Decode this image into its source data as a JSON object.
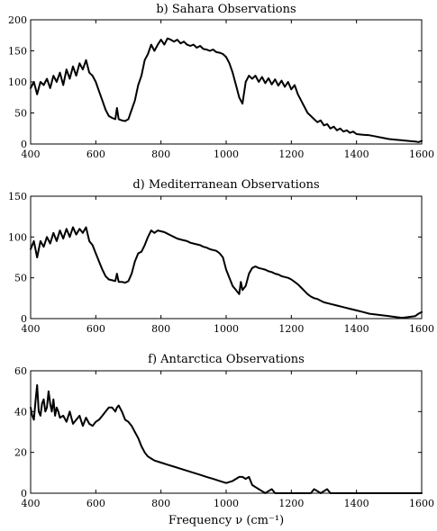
{
  "chart_data": [
    {
      "type": "line",
      "title": "b) Sahara Observations",
      "xlim": [
        400,
        1600
      ],
      "ylim": [
        0,
        200
      ],
      "xticks": [
        400,
        600,
        800,
        1000,
        1200,
        1400,
        1600
      ],
      "yticks": [
        0,
        50,
        100,
        150,
        200
      ],
      "grid": false,
      "series": [
        {
          "x": [
            400,
            410,
            420,
            430,
            440,
            450,
            460,
            470,
            480,
            490,
            500,
            510,
            520,
            530,
            540,
            550,
            560,
            570,
            580,
            590,
            600,
            610,
            620,
            630,
            640,
            650,
            660,
            665,
            670,
            680,
            690,
            700,
            710,
            720,
            730,
            740,
            750,
            760,
            770,
            780,
            790,
            800,
            810,
            820,
            830,
            840,
            850,
            860,
            870,
            880,
            890,
            900,
            910,
            920,
            930,
            940,
            950,
            960,
            970,
            980,
            990,
            1000,
            1010,
            1020,
            1030,
            1040,
            1050,
            1060,
            1070,
            1080,
            1090,
            1100,
            1110,
            1120,
            1130,
            1140,
            1150,
            1160,
            1170,
            1180,
            1190,
            1200,
            1210,
            1220,
            1230,
            1240,
            1250,
            1260,
            1270,
            1280,
            1290,
            1300,
            1310,
            1320,
            1330,
            1340,
            1350,
            1360,
            1370,
            1380,
            1390,
            1400,
            1420,
            1440,
            1460,
            1480,
            1500,
            1520,
            1540,
            1560,
            1580,
            1590,
            1600
          ],
          "y": [
            90,
            100,
            80,
            100,
            95,
            105,
            90,
            110,
            100,
            115,
            95,
            120,
            105,
            125,
            110,
            130,
            120,
            135,
            115,
            110,
            100,
            85,
            70,
            55,
            45,
            42,
            40,
            58,
            40,
            38,
            37,
            40,
            55,
            70,
            95,
            110,
            135,
            145,
            160,
            150,
            160,
            168,
            160,
            170,
            168,
            165,
            168,
            162,
            165,
            160,
            158,
            160,
            155,
            158,
            153,
            152,
            150,
            152,
            148,
            147,
            145,
            140,
            130,
            115,
            95,
            75,
            65,
            100,
            110,
            105,
            110,
            100,
            108,
            98,
            106,
            96,
            104,
            94,
            102,
            92,
            100,
            88,
            95,
            80,
            70,
            60,
            50,
            45,
            40,
            35,
            38,
            30,
            32,
            25,
            28,
            22,
            25,
            20,
            22,
            18,
            20,
            16,
            15,
            14,
            12,
            10,
            8,
            7,
            6,
            5,
            4,
            3,
            5
          ],
          "color": "#000000"
        }
      ]
    },
    {
      "type": "line",
      "title": "d) Mediterranean Observations",
      "xlim": [
        400,
        1600
      ],
      "ylim": [
        0,
        150
      ],
      "xticks": [
        400,
        600,
        800,
        1000,
        1200,
        1400,
        1600
      ],
      "yticks": [
        0,
        50,
        100,
        150
      ],
      "grid": false,
      "series": [
        {
          "x": [
            400,
            410,
            420,
            430,
            440,
            450,
            460,
            470,
            480,
            490,
            500,
            510,
            520,
            530,
            540,
            550,
            560,
            570,
            580,
            590,
            600,
            610,
            620,
            630,
            640,
            650,
            660,
            665,
            670,
            680,
            690,
            700,
            710,
            720,
            730,
            740,
            750,
            760,
            770,
            780,
            790,
            800,
            810,
            820,
            830,
            840,
            850,
            860,
            870,
            880,
            890,
            900,
            910,
            920,
            930,
            940,
            950,
            960,
            970,
            980,
            990,
            1000,
            1010,
            1020,
            1030,
            1040,
            1045,
            1050,
            1060,
            1070,
            1080,
            1090,
            1100,
            1110,
            1120,
            1130,
            1140,
            1150,
            1160,
            1170,
            1180,
            1190,
            1200,
            1210,
            1220,
            1230,
            1240,
            1250,
            1260,
            1270,
            1280,
            1290,
            1300,
            1320,
            1340,
            1360,
            1380,
            1400,
            1420,
            1440,
            1460,
            1480,
            1500,
            1520,
            1540,
            1560,
            1580,
            1590,
            1600
          ],
          "y": [
            85,
            95,
            75,
            95,
            88,
            100,
            92,
            105,
            95,
            108,
            98,
            110,
            100,
            112,
            103,
            110,
            105,
            112,
            95,
            90,
            80,
            70,
            60,
            52,
            48,
            47,
            46,
            55,
            45,
            45,
            44,
            46,
            55,
            70,
            80,
            82,
            90,
            100,
            108,
            105,
            108,
            107,
            106,
            104,
            102,
            100,
            98,
            97,
            96,
            95,
            93,
            92,
            91,
            90,
            88,
            87,
            85,
            84,
            83,
            80,
            75,
            60,
            50,
            40,
            35,
            30,
            45,
            35,
            40,
            55,
            62,
            64,
            62,
            61,
            60,
            58,
            57,
            55,
            54,
            52,
            51,
            50,
            48,
            45,
            42,
            38,
            34,
            30,
            27,
            25,
            24,
            22,
            20,
            18,
            16,
            14,
            12,
            10,
            8,
            6,
            5,
            4,
            3,
            2,
            1,
            2,
            3,
            6,
            8
          ],
          "color": "#000000"
        }
      ]
    },
    {
      "type": "line",
      "title": "f) Antarctica Observations",
      "xlabel": "Frequency ν (cm⁻¹)",
      "xlim": [
        400,
        1600
      ],
      "ylim": [
        0,
        60
      ],
      "xticks": [
        400,
        600,
        800,
        1000,
        1200,
        1400,
        1600
      ],
      "yticks": [
        0,
        20,
        40,
        60
      ],
      "grid": false,
      "series": [
        {
          "x": [
            400,
            405,
            410,
            415,
            420,
            425,
            430,
            435,
            440,
            445,
            450,
            455,
            460,
            465,
            470,
            475,
            480,
            485,
            490,
            500,
            510,
            520,
            530,
            540,
            550,
            560,
            570,
            580,
            590,
            600,
            610,
            620,
            630,
            640,
            650,
            660,
            665,
            670,
            680,
            690,
            700,
            710,
            720,
            730,
            740,
            750,
            760,
            770,
            780,
            800,
            820,
            840,
            860,
            880,
            900,
            920,
            940,
            960,
            980,
            1000,
            1020,
            1030,
            1040,
            1050,
            1060,
            1070,
            1080,
            1090,
            1100,
            1110,
            1120,
            1130,
            1140,
            1150,
            1160,
            1180,
            1200,
            1220,
            1240,
            1260,
            1270,
            1280,
            1290,
            1300,
            1310,
            1320,
            1340,
            1360,
            1400,
            1450,
            1500,
            1550,
            1600
          ],
          "y": [
            42,
            38,
            36,
            45,
            53,
            40,
            38,
            44,
            46,
            40,
            42,
            50,
            44,
            40,
            46,
            38,
            42,
            40,
            37,
            38,
            35,
            40,
            34,
            36,
            38,
            33,
            37,
            34,
            33,
            35,
            36,
            38,
            40,
            42,
            42,
            40,
            42,
            43,
            40,
            36,
            35,
            33,
            30,
            27,
            23,
            20,
            18,
            17,
            16,
            15,
            14,
            13,
            12,
            11,
            10,
            9,
            8,
            7,
            6,
            5,
            6,
            7,
            8,
            8,
            7,
            8,
            4,
            3,
            2,
            1,
            0,
            1,
            2,
            0,
            0,
            0,
            0,
            0,
            0,
            0,
            2,
            1,
            0,
            1,
            2,
            0,
            0,
            0,
            0,
            0,
            0,
            0,
            0
          ],
          "color": "#000000"
        }
      ]
    }
  ]
}
